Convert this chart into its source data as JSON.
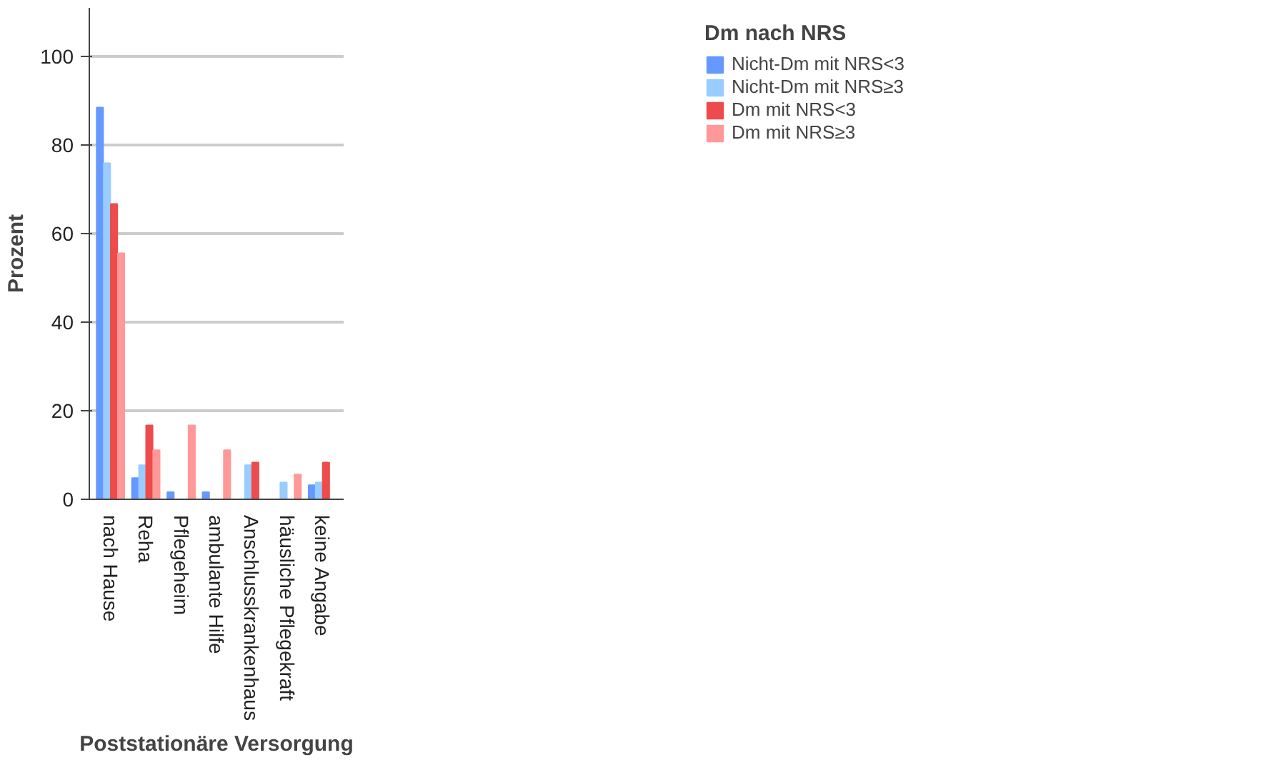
{
  "chart_data": {
    "type": "bar",
    "xlabel": "Poststationäre Versorgung",
    "ylabel": "Prozent",
    "legend_title": "Dm nach NRS",
    "categories": [
      "nach Hause",
      "Reha",
      "Pflegeheim",
      "ambulante Hilfe",
      "Anschlusskrankenhaus",
      "häusliche Pflegekraft",
      "keine Angabe"
    ],
    "series": [
      {
        "name": "Nicht-Dm mit NRS<3",
        "color": "#6699ff",
        "values": [
          88.5,
          4.8,
          1.6,
          1.6,
          0,
          0,
          3.2
        ]
      },
      {
        "name": "Nicht-Dm mit NRS≥3",
        "color": "#99ccff",
        "values": [
          75.9,
          7.7,
          0,
          0,
          7.7,
          3.8,
          3.8
        ]
      },
      {
        "name": "Dm mit NRS<3",
        "color": "#ee4c4c",
        "values": [
          66.7,
          16.7,
          0,
          0,
          8.3,
          0,
          8.3
        ]
      },
      {
        "name": "Dm mit NRS≥3",
        "color": "#ff9999",
        "values": [
          55.6,
          11.1,
          16.7,
          11.1,
          0,
          5.6,
          0
        ]
      }
    ],
    "ylim": [
      0,
      111
    ],
    "yticks": [
      0,
      20,
      40,
      60,
      80,
      100
    ],
    "grid": "y",
    "legend": "top right"
  }
}
